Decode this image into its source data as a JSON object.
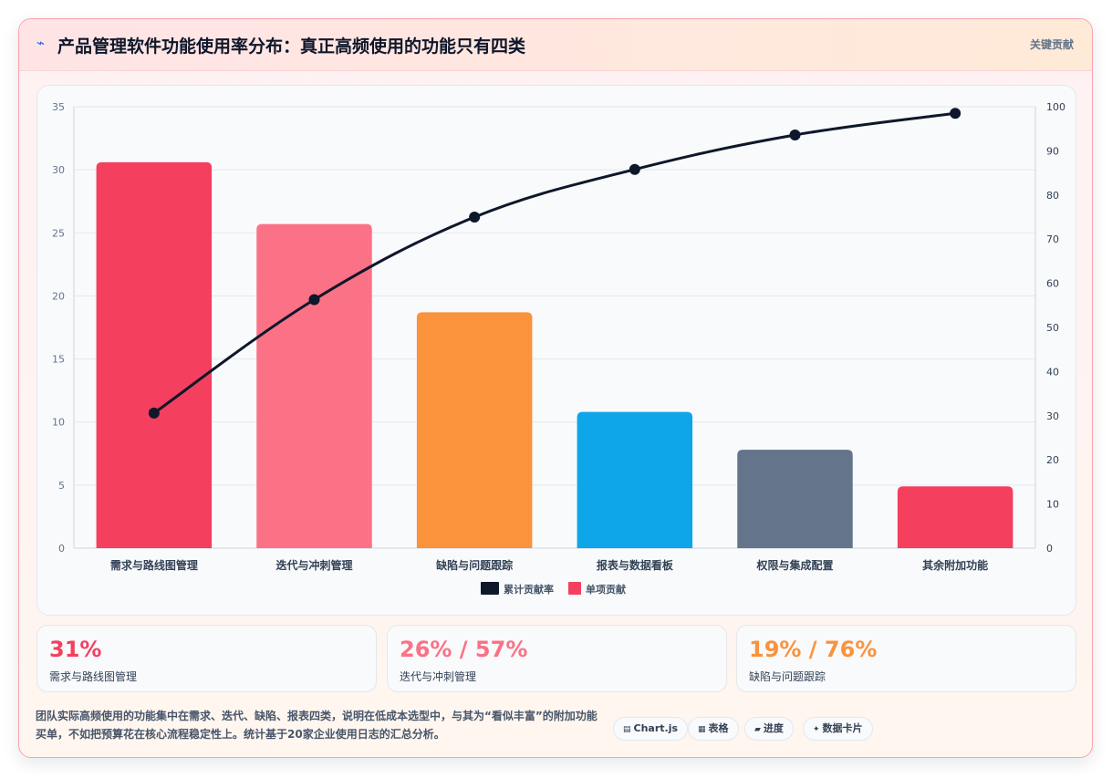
{
  "header": {
    "title_icon": "⌁",
    "title": "产品管理软件功能使用率分布：真正高频使用的功能只有四类",
    "right_label": "关键贡献"
  },
  "chart_data": {
    "type": "bar",
    "categories": [
      "需求与路线图管理",
      "迭代与冲刺管理",
      "缺陷与问题跟踪",
      "报表与数据看板",
      "权限与集成配置",
      "其余附加功能"
    ],
    "series": [
      {
        "name": "单项贡献",
        "type": "bar",
        "axis": "left",
        "values": [
          30.6,
          25.7,
          18.7,
          10.8,
          7.8,
          4.9
        ],
        "colors": [
          "#f43f5e",
          "#fb7185",
          "#fb923c",
          "#0ea5e9",
          "#64748b",
          "#f43f5e"
        ]
      },
      {
        "name": "累计贡献率",
        "type": "line",
        "axis": "right",
        "values": [
          30.6,
          56.3,
          75.0,
          85.8,
          93.6,
          98.5
        ],
        "color": "#0f172a"
      }
    ],
    "ylim_left": [
      0,
      35
    ],
    "yticks_left": [
      0,
      5,
      10,
      15,
      20,
      25,
      30,
      35
    ],
    "ylim_right": [
      0,
      100
    ],
    "yticks_right": [
      0,
      10,
      20,
      30,
      40,
      50,
      60,
      70,
      80,
      90,
      100
    ],
    "grid": true,
    "legend_position": "bottom"
  },
  "stats": [
    {
      "value": "31%",
      "label": "需求与路线图管理",
      "color": "#f43f5e"
    },
    {
      "value": "26% / 57%",
      "label": "迭代与冲刺管理",
      "color": "#fb7185"
    },
    {
      "value": "19% / 76%",
      "label": "缺陷与问题跟踪",
      "color": "#fb923c"
    }
  ],
  "description": "团队实际高频使用的功能集中在需求、迭代、缺陷、报表四类，说明在低成本选型中，与其为“看似丰富”的附加功能买单，不如把预算花在核心流程稳定性上。统计基于20家企业使用日志的汇总分析。",
  "chips": [
    {
      "icon": "▤",
      "label": "Chart.js"
    },
    {
      "icon": "▦",
      "label": "表格"
    },
    {
      "icon": "▰",
      "label": "进度"
    },
    {
      "icon": "✦",
      "label": "数据卡片"
    }
  ]
}
